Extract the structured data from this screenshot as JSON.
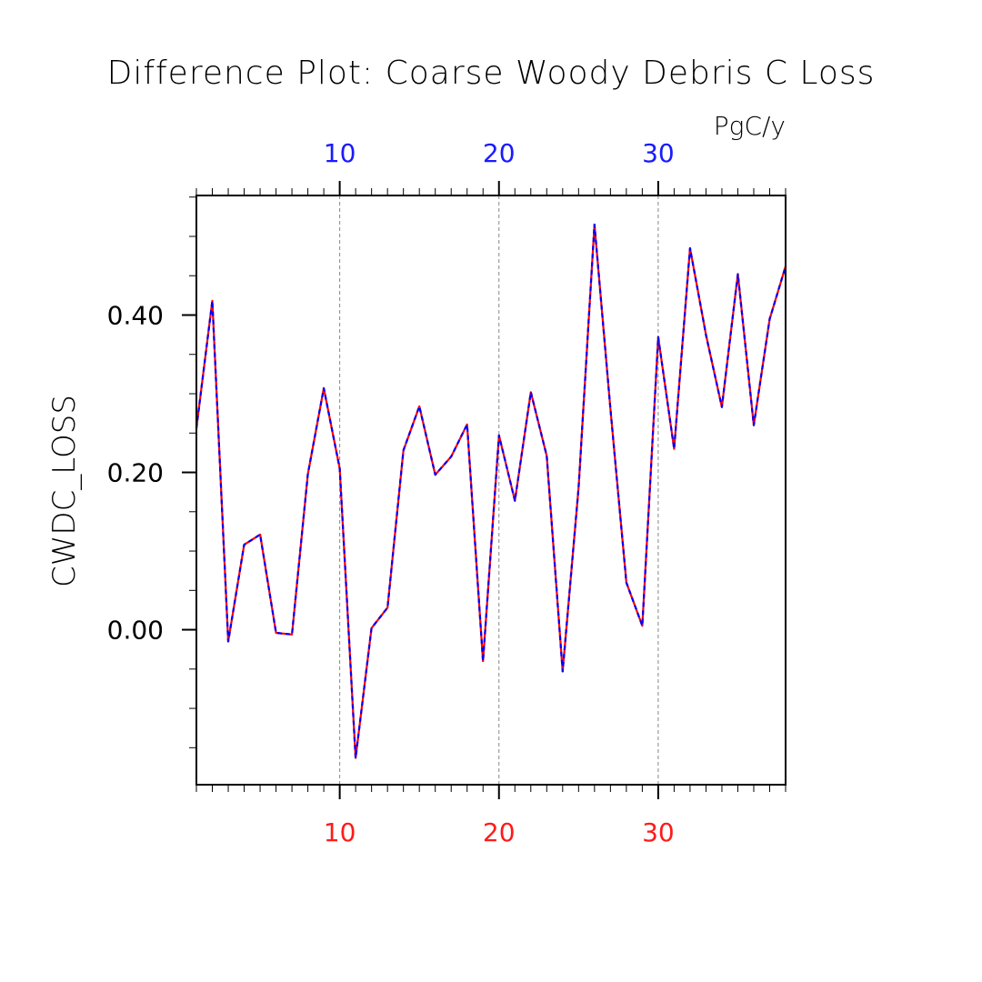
{
  "chart_data": {
    "type": "line",
    "title": "Difference Plot: Coarse Woody Debris C Loss",
    "units": "PgC/y",
    "ylabel": "CWDC_LOSS",
    "xlim": [
      1,
      38
    ],
    "ylim": [
      -0.197,
      0.552
    ],
    "x_ticks": [
      10,
      20,
      30
    ],
    "x_tick_labels": [
      "10",
      "20",
      "30"
    ],
    "y_ticks": [
      0.0,
      0.2,
      0.4
    ],
    "y_tick_labels": [
      "0.00",
      "0.20",
      "0.40"
    ],
    "grid": "vertical-dashed",
    "colors": {
      "top_axis": "#1a1aff",
      "bottom_axis": "#ff1a1a",
      "series_a": "#ff0000",
      "series_b": "#0000ff"
    },
    "x": [
      1,
      2,
      3,
      4,
      5,
      6,
      7,
      8,
      9,
      10,
      11,
      12,
      13,
      14,
      15,
      16,
      17,
      18,
      19,
      20,
      21,
      22,
      23,
      24,
      25,
      26,
      27,
      28,
      29,
      30,
      31,
      32,
      33,
      34,
      35,
      36,
      37,
      38
    ],
    "series": [
      {
        "values": [
          0.256,
          0.418,
          -0.015,
          0.108,
          0.121,
          -0.004,
          -0.006,
          0.198,
          0.307,
          0.205,
          -0.163,
          0.002,
          0.028,
          0.228,
          0.284,
          0.197,
          0.22,
          0.261,
          -0.04,
          0.247,
          0.164,
          0.302,
          0.221,
          -0.053,
          0.18,
          0.515,
          0.28,
          0.06,
          0.005,
          0.372,
          0.23,
          0.485,
          0.375,
          0.283,
          0.452,
          0.26,
          0.395,
          0.462
        ]
      },
      {
        "values": [
          0.256,
          0.418,
          -0.015,
          0.108,
          0.121,
          -0.004,
          -0.006,
          0.198,
          0.307,
          0.205,
          -0.163,
          0.002,
          0.028,
          0.228,
          0.284,
          0.197,
          0.22,
          0.261,
          -0.04,
          0.247,
          0.164,
          0.302,
          0.221,
          -0.053,
          0.18,
          0.515,
          0.28,
          0.06,
          0.005,
          0.372,
          0.23,
          0.485,
          0.375,
          0.283,
          0.452,
          0.26,
          0.395,
          0.462
        ]
      }
    ]
  }
}
